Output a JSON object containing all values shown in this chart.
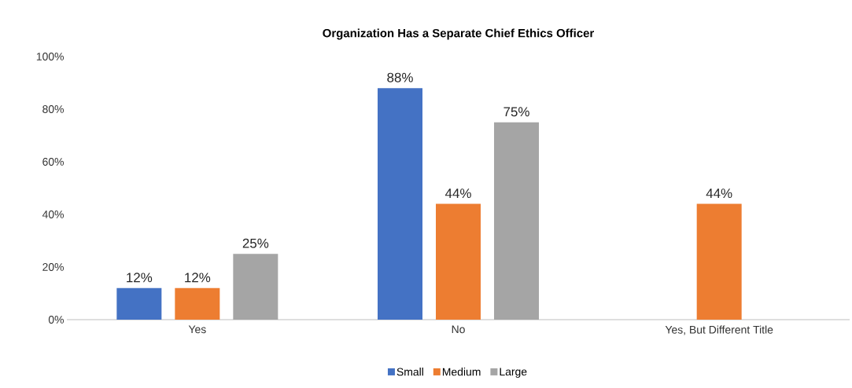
{
  "chart_data": {
    "type": "bar",
    "title": "Organization Has a Separate Chief Ethics Officer",
    "categories": [
      "Yes",
      "No",
      "Yes, But Different Title"
    ],
    "series": [
      {
        "name": "Small",
        "color": "#4472c4",
        "values": [
          12,
          88,
          null
        ],
        "value_labels": [
          "12%",
          "88%",
          null
        ]
      },
      {
        "name": "Medium",
        "color": "#ed7d31",
        "values": [
          12,
          44,
          44
        ],
        "value_labels": [
          "12%",
          "44%",
          "44%"
        ]
      },
      {
        "name": "Large",
        "color": "#a5a5a5",
        "values": [
          25,
          75,
          null
        ],
        "value_labels": [
          "25%",
          "75%",
          null
        ]
      }
    ],
    "ylim": [
      0,
      100
    ],
    "yticks": [
      {
        "value": 0,
        "label": "0%"
      },
      {
        "value": 20,
        "label": "20%"
      },
      {
        "value": 40,
        "label": "40%"
      },
      {
        "value": 60,
        "label": "60%"
      },
      {
        "value": 80,
        "label": "80%"
      },
      {
        "value": 100,
        "label": "100%"
      }
    ],
    "legend": "bottom"
  }
}
